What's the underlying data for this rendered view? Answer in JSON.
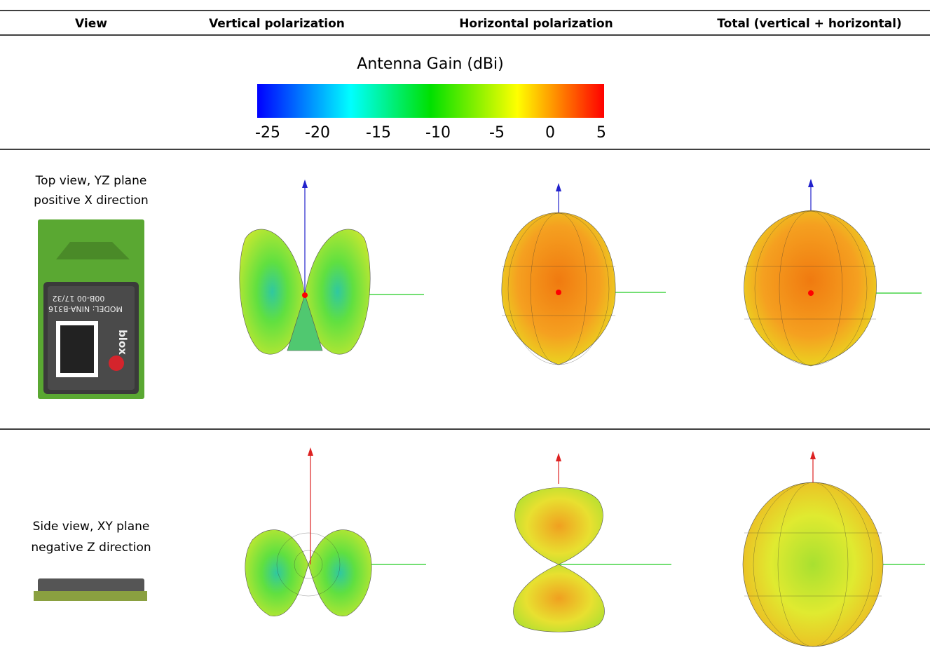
{
  "header": {
    "columns": [
      "View",
      "Vertical polarization",
      "Horizontal polarization",
      "Total (vertical + horizontal)"
    ]
  },
  "colorbar": {
    "title": "Antenna Gain (dBi)",
    "ticks": [
      "-25",
      "-20",
      "-15",
      "-10",
      "-5",
      "0",
      "5"
    ]
  },
  "rows": [
    {
      "view": [
        "Top view, YZ plane",
        "positive X direction"
      ],
      "module_label": [
        "MODEL: NINA-B316",
        "00B-00 17/32",
        "blox"
      ]
    },
    {
      "view": [
        "Side view, XY plane",
        "negative Z direction"
      ]
    }
  ]
}
